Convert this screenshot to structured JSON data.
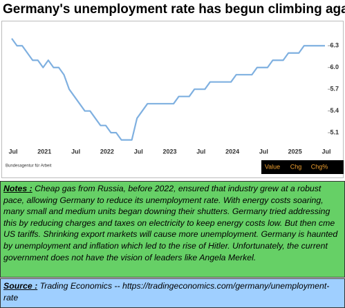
{
  "header": {
    "title": "Germany's unemployment rate has begun climbing again"
  },
  "chart_data": {
    "type": "line",
    "color": "#7fb0e0",
    "categories": [
      "Jul",
      null,
      null,
      null,
      null,
      null,
      "2021",
      null,
      null,
      null,
      null,
      null,
      "Jul",
      null,
      null,
      null,
      null,
      null,
      "2022",
      null,
      null,
      null,
      null,
      null,
      "Jul",
      null,
      null,
      null,
      null,
      null,
      "2023",
      null,
      null,
      null,
      null,
      null,
      "Jul",
      null,
      null,
      null,
      null,
      null,
      "2024",
      null,
      null,
      null,
      null,
      null,
      "Jul",
      null,
      null,
      null,
      null,
      null,
      "2025",
      null,
      null,
      null,
      null,
      null,
      "Jul"
    ],
    "values": [
      6.4,
      6.3,
      6.3,
      6.2,
      6.1,
      6.1,
      6.0,
      6.1,
      6.0,
      6.0,
      5.9,
      5.7,
      5.6,
      5.5,
      5.4,
      5.4,
      5.3,
      5.2,
      5.2,
      5.1,
      5.1,
      5.0,
      5.0,
      5.0,
      5.3,
      5.4,
      5.5,
      5.5,
      5.5,
      5.5,
      5.5,
      5.5,
      5.6,
      5.6,
      5.6,
      5.7,
      5.7,
      5.7,
      5.8,
      5.8,
      5.8,
      5.8,
      5.8,
      5.9,
      5.9,
      5.9,
      5.9,
      6.0,
      6.0,
      6.0,
      6.1,
      6.1,
      6.1,
      6.2,
      6.2,
      6.2,
      6.3,
      6.3,
      6.3,
      6.3,
      6.3
    ],
    "ylim": [
      4.93,
      6.55
    ],
    "yticks": [
      5.1,
      5.4,
      5.7,
      {
        "value": 6,
        "label": "6.0"
      },
      6.3
    ],
    "source": "Bundesagentur für Arbeit",
    "legend_box": [
      "Value",
      "Chg",
      "Chg%"
    ]
  },
  "notes": {
    "label": "Notes :",
    "text": "Cheap  gas from Russia, before 2022, ensured that industry grew at a robust pace, allowing Germany to reduce its unemployment rate.  With energy costs soaring, many small and medium units began downing their shutters. Germany tried addressing this by reducing charges and taxes on electricity to keep energy costs low. But then cme US  tariffs.  Shrinking export markets will cause more unemployment. Germany is haunted by unemployment and inflation which led to the rise of Hitler.  Unfortunately, the current government does not have the vision of leaders like Angela Merkel."
  },
  "source": {
    "label": "Source :",
    "text": "Trading Economics -- https://tradingeconomics.com/germany/unemployment-rate"
  }
}
